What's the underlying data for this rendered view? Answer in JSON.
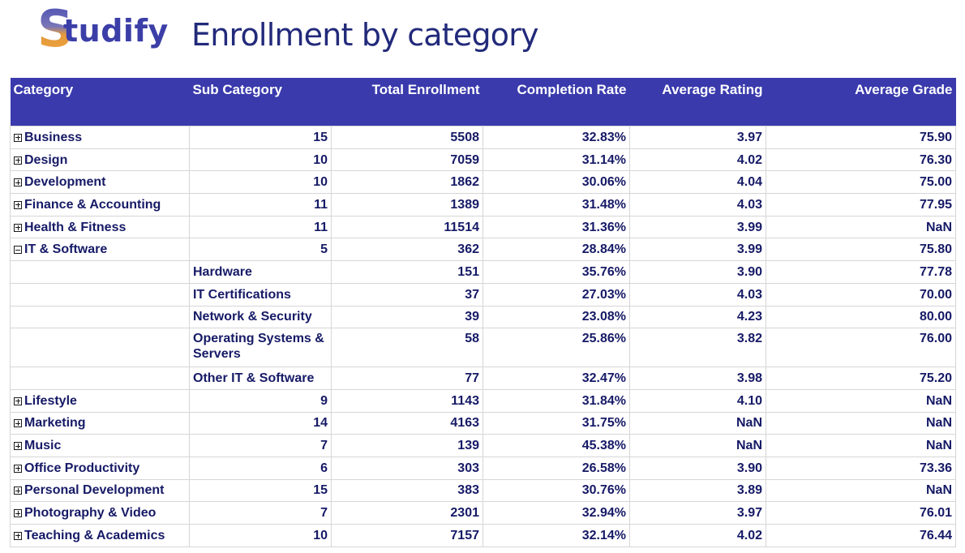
{
  "logo": {
    "first_letter": "S",
    "rest": "tudify"
  },
  "title": "Enrollment by category",
  "columns": [
    "Category",
    "Sub Category",
    "Total Enrollment",
    "Completion Rate",
    "Average Rating",
    "Average Grade"
  ],
  "rows": [
    {
      "category": "Business",
      "expanded": false,
      "sub": "15",
      "enroll": "5508",
      "completion": "32.83%",
      "rating": "3.97",
      "grade": "75.90"
    },
    {
      "category": "Design",
      "expanded": false,
      "sub": "10",
      "enroll": "7059",
      "completion": "31.14%",
      "rating": "4.02",
      "grade": "76.30"
    },
    {
      "category": "Development",
      "expanded": false,
      "sub": "10",
      "enroll": "1862",
      "completion": "30.06%",
      "rating": "4.04",
      "grade": "75.00"
    },
    {
      "category": "Finance & Accounting",
      "expanded": false,
      "sub": "11",
      "enroll": "1389",
      "completion": "31.48%",
      "rating": "4.03",
      "grade": "77.95"
    },
    {
      "category": "Health & Fitness",
      "expanded": false,
      "sub": "11",
      "enroll": "11514",
      "completion": "31.36%",
      "rating": "3.99",
      "grade": "NaN"
    },
    {
      "category": "IT & Software",
      "expanded": true,
      "sub": "5",
      "enroll": "362",
      "completion": "28.84%",
      "rating": "3.99",
      "grade": "75.80",
      "children": [
        {
          "sub": "Hardware",
          "enroll": "151",
          "completion": "35.76%",
          "rating": "3.90",
          "grade": "77.78"
        },
        {
          "sub": "IT Certifications",
          "enroll": "37",
          "completion": "27.03%",
          "rating": "4.03",
          "grade": "70.00"
        },
        {
          "sub": "Network & Security",
          "enroll": "39",
          "completion": "23.08%",
          "rating": "4.23",
          "grade": "80.00"
        },
        {
          "sub": "Operating Systems & Servers",
          "enroll": "58",
          "completion": "25.86%",
          "rating": "3.82",
          "grade": "76.00"
        },
        {
          "sub": "Other IT & Software",
          "enroll": "77",
          "completion": "32.47%",
          "rating": "3.98",
          "grade": "75.20"
        }
      ]
    },
    {
      "category": "Lifestyle",
      "expanded": false,
      "sub": "9",
      "enroll": "1143",
      "completion": "31.84%",
      "rating": "4.10",
      "grade": "NaN"
    },
    {
      "category": "Marketing",
      "expanded": false,
      "sub": "14",
      "enroll": "4163",
      "completion": "31.75%",
      "rating": "NaN",
      "grade": "NaN"
    },
    {
      "category": "Music",
      "expanded": false,
      "sub": "7",
      "enroll": "139",
      "completion": "45.38%",
      "rating": "NaN",
      "grade": "NaN"
    },
    {
      "category": "Office Productivity",
      "expanded": false,
      "sub": "6",
      "enroll": "303",
      "completion": "26.58%",
      "rating": "3.90",
      "grade": "73.36"
    },
    {
      "category": "Personal Development",
      "expanded": false,
      "sub": "15",
      "enroll": "383",
      "completion": "30.76%",
      "rating": "3.89",
      "grade": "NaN"
    },
    {
      "category": "Photography & Video",
      "expanded": false,
      "sub": "7",
      "enroll": "2301",
      "completion": "32.94%",
      "rating": "3.97",
      "grade": "76.01"
    },
    {
      "category": "Teaching & Academics",
      "expanded": false,
      "sub": "10",
      "enroll": "7157",
      "completion": "32.14%",
      "rating": "4.02",
      "grade": "76.44"
    }
  ]
}
